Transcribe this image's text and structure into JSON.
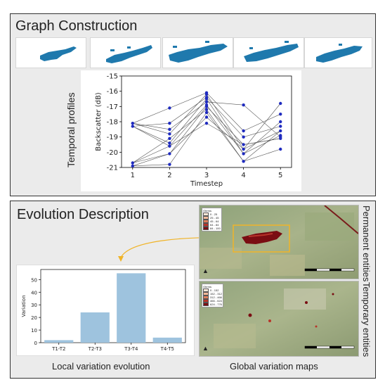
{
  "graph_construction": {
    "title": "Graph Construction",
    "profile_label": "Temporal profiles",
    "chart_data": {
      "type": "scatter",
      "xlabel": "Timestep",
      "ylabel": "Backscatter (dB)",
      "x_ticks": [
        "1",
        "2",
        "3",
        "4",
        "5"
      ],
      "y_ticks": [
        "-15",
        "-16",
        "-17",
        "-18",
        "-19",
        "-20",
        "-21"
      ],
      "xlim": [
        0.7,
        5.3
      ],
      "ylim": [
        -21,
        -15
      ],
      "points_per_timestep": [
        [
          -18.1,
          -18.3,
          -20.7,
          -20.9
        ],
        [
          -17.1,
          -18.1,
          -18.5,
          -18.8,
          -19.1,
          -19.4,
          -19.6,
          -20.1,
          -20.8
        ],
        [
          -16.1,
          -16.2,
          -16.4,
          -16.5,
          -16.7,
          -16.9,
          -17.0,
          -17.2,
          -17.4,
          -17.7,
          -18.1
        ],
        [
          -16.9,
          -18.6,
          -19.0,
          -19.5,
          -19.8,
          -20.1,
          -20.6
        ],
        [
          -16.8,
          -17.5,
          -18.0,
          -18.3,
          -18.6,
          -18.9,
          -19.0,
          -19.1,
          -19.8
        ]
      ],
      "profiles": [
        [
          -18.1,
          -18.8,
          -16.2,
          -19.8,
          -18.6
        ],
        [
          -18.3,
          -19.4,
          -16.5,
          -20.1,
          -18.0
        ],
        [
          -20.7,
          -20.1,
          -17.0,
          -19.5,
          -19.1
        ],
        [
          -20.9,
          -20.8,
          -17.4,
          -20.6,
          -19.8
        ],
        [
          -18.1,
          -17.1,
          -16.1,
          -18.6,
          -17.5
        ],
        [
          -18.3,
          -18.1,
          -16.4,
          -19.0,
          -18.3
        ],
        [
          -20.7,
          -19.6,
          -16.9,
          -20.1,
          -18.9
        ],
        [
          -20.9,
          -20.1,
          -17.7,
          -19.8,
          -16.8
        ],
        [
          -18.1,
          -18.5,
          -16.7,
          -16.9,
          -19.0
        ],
        [
          -20.7,
          -19.1,
          -17.2,
          -20.6,
          -18.6
        ],
        [
          -18.3,
          -19.6,
          -18.1,
          -19.5,
          -19.1
        ]
      ],
      "point_color": "#1f2bbf",
      "line_color": "#555555"
    }
  },
  "evolution_description": {
    "title": "Evolution Description",
    "local_caption": "Local variation evolution",
    "global_caption": "Global variation maps",
    "permanent_label": "Permanent entities",
    "temporary_label": "Temporary entities",
    "chart_data": {
      "type": "bar",
      "categories": [
        "T1-T2",
        "T2-T3",
        "T3-T4",
        "T4-T5"
      ],
      "values": [
        2,
        24,
        55,
        4
      ],
      "ylabel": "Variation",
      "y_ticks": [
        "0",
        "10",
        "20",
        "30",
        "40",
        "50"
      ],
      "ylim": [
        0,
        58
      ],
      "bar_color": "#9ec3de"
    },
    "legend_permanent": {
      "title": "Gbrms",
      "entries": [
        "0 - 25",
        "25 - 45",
        "45 - 64",
        "64 - 84",
        "84 - 100"
      ],
      "colors": [
        "#fde8d8",
        "#f4b998",
        "#e07d5a",
        "#b8342a",
        "#7a0d12"
      ]
    },
    "legend_temporary": {
      "title": "Gbrms",
      "entries": [
        "0 - 152",
        "152 - 312",
        "312 - 466",
        "466 - 624",
        "624 - 776"
      ],
      "colors": [
        "#fde8d8",
        "#f4b998",
        "#e07d5a",
        "#b8342a",
        "#7a0d12"
      ]
    },
    "highlight_color": "#f0b429",
    "north_symbol": "▲"
  }
}
